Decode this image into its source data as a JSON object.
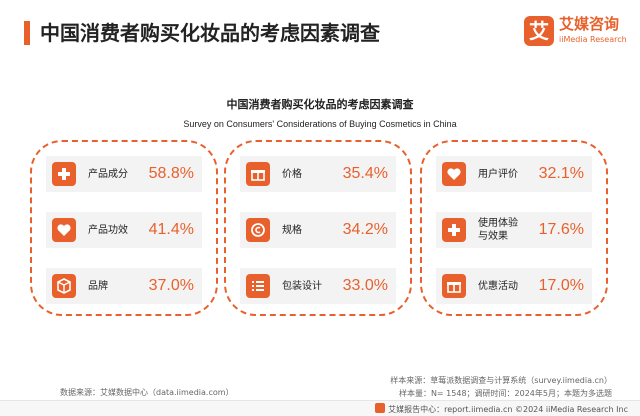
{
  "header": {
    "title": "中国消费者购买化妆品的考虑因素调查",
    "logo_mark": "艾",
    "logo_cn": "艾媒咨询",
    "logo_en": "iiMedia Research"
  },
  "chart_data": {
    "type": "table",
    "title": "中国消费者购买化妆品的考虑因素调查",
    "subtitle": "Survey on Consumers' Considerations of Buying Cosmetics in China",
    "groups": [
      {
        "items": [
          {
            "label": "产品成分",
            "value": 58.8,
            "display": "58.8%",
            "icon": "plus-icon"
          },
          {
            "label": "产品功效",
            "value": 41.4,
            "display": "41.4%",
            "icon": "heart-icon"
          },
          {
            "label": "品牌",
            "value": 37.0,
            "display": "37.0%",
            "icon": "cube-icon"
          }
        ]
      },
      {
        "items": [
          {
            "label": "价格",
            "value": 35.4,
            "display": "35.4%",
            "icon": "gift-icon"
          },
          {
            "label": "规格",
            "value": 34.2,
            "display": "34.2%",
            "icon": "coin-icon"
          },
          {
            "label": "包装设计",
            "value": 33.0,
            "display": "33.0%",
            "icon": "list-icon"
          }
        ]
      },
      {
        "items": [
          {
            "label": "用户评价",
            "value": 32.1,
            "display": "32.1%",
            "icon": "heart-icon"
          },
          {
            "label": "使用体验\n与效果",
            "value": 17.6,
            "display": "17.6%",
            "icon": "plus-icon"
          },
          {
            "label": "优惠活动",
            "value": 17.0,
            "display": "17.0%",
            "icon": "gift-icon"
          }
        ]
      }
    ]
  },
  "footer": {
    "source": "数据来源：艾媒数据中心（data.iimedia.com）",
    "sample_source": "样本来源：草莓派数据调查与计算系统（survey.iimedia.cn）",
    "sample_size": "样本量：N= 1548；调研时间：2024年5月；本题为多选题",
    "bottom": "艾媒报告中心：report.iimedia.cn    ©2024  iiMedia Research  Inc"
  },
  "colors": {
    "accent": "#e8612c",
    "card_bg": "#f3f3f3"
  }
}
